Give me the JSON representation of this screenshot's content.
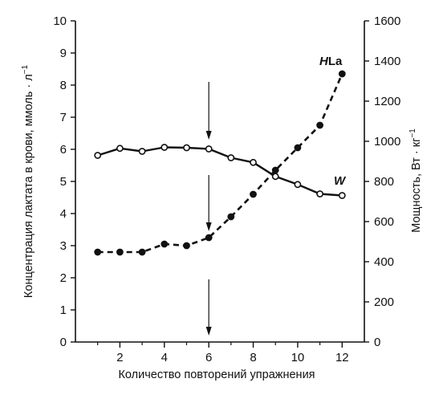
{
  "chart_data": {
    "type": "line",
    "title": "",
    "xlabel": "Количество повторений упражнения",
    "ylabel_left": "Концентрация лактата в крови, ммоль · л",
    "ylabel_left_superscript": "−1",
    "ylabel_right": "Мощность, Вт · кг",
    "ylabel_right_superscript": "−1",
    "xlim": [
      0,
      13
    ],
    "ylim_left": [
      0,
      10
    ],
    "ylim_right": [
      0,
      1600
    ],
    "x_ticks": [
      "2",
      "4",
      "6",
      "8",
      "10",
      "12"
    ],
    "x_minor_ticks": [
      1,
      3,
      5,
      7,
      9,
      11
    ],
    "y_left_ticks": [
      "0",
      "1",
      "2",
      "3",
      "4",
      "5",
      "6",
      "7",
      "8",
      "9",
      "10"
    ],
    "y_right_ticks": [
      "0",
      "200",
      "400",
      "600",
      "800",
      "1000",
      "1200",
      "1400",
      "1600"
    ],
    "grid": false,
    "series": [
      {
        "name": "W",
        "axis": "right",
        "style": "solid",
        "marker": "open-circle",
        "x": [
          1,
          2,
          3,
          4,
          5,
          6,
          7,
          8,
          9,
          10,
          11,
          12
        ],
        "y": [
          930,
          965,
          950,
          970,
          968,
          962,
          918,
          895,
          825,
          785,
          738,
          730
        ]
      },
      {
        "name": "HLa",
        "axis": "left",
        "style": "dashed",
        "marker": "filled-circle",
        "x": [
          1,
          2,
          3,
          4,
          5,
          6,
          7,
          8,
          9,
          10,
          11,
          12
        ],
        "y": [
          2.8,
          2.8,
          2.8,
          3.05,
          3.0,
          3.25,
          3.9,
          4.6,
          5.35,
          6.05,
          6.75,
          8.35
        ]
      }
    ],
    "series_labels": [
      {
        "italic": "H",
        "text": "La",
        "near_series": "HLa"
      },
      {
        "italic": "W",
        "text": "",
        "near_series": "W"
      }
    ],
    "annotations": [
      {
        "type": "arrow-down",
        "x": 6,
        "from_y": 8.1,
        "to_y": 6.3
      },
      {
        "type": "arrow-down",
        "x": 6,
        "from_y": 5.2,
        "to_y": 3.45
      },
      {
        "type": "arrow-down",
        "x": 6,
        "from_y": 1.95,
        "to_y": 0.2
      }
    ]
  }
}
